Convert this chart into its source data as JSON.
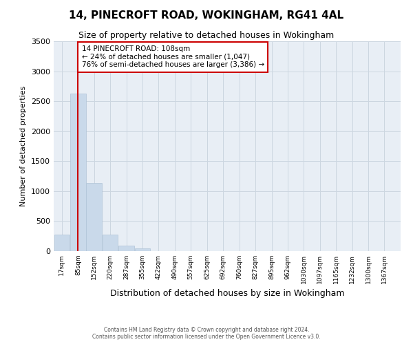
{
  "title": "14, PINECROFT ROAD, WOKINGHAM, RG41 4AL",
  "subtitle": "Size of property relative to detached houses in Wokingham",
  "xlabel": "Distribution of detached houses by size in Wokingham",
  "ylabel": "Number of detached properties",
  "bar_color": "#c9d9ea",
  "bar_edge_color": "#b0c4d8",
  "grid_color": "#ccd6e0",
  "bg_color": "#e8eef5",
  "property_line_color": "#cc0000",
  "property_value": 108,
  "property_label": "14 PINECROFT ROAD: 108sqm",
  "annotation_line1": "← 24% of detached houses are smaller (1,047)",
  "annotation_line2": "76% of semi-detached houses are larger (3,386) →",
  "annotation_box_edge_color": "#cc0000",
  "categories": [
    "17sqm",
    "85sqm",
    "152sqm",
    "220sqm",
    "287sqm",
    "355sqm",
    "422sqm",
    "490sqm",
    "557sqm",
    "625sqm",
    "692sqm",
    "760sqm",
    "827sqm",
    "895sqm",
    "962sqm",
    "1030sqm",
    "1097sqm",
    "1165sqm",
    "1232sqm",
    "1300sqm",
    "1367sqm"
  ],
  "bar_heights": [
    270,
    2630,
    1140,
    270,
    90,
    45,
    5,
    0,
    0,
    0,
    0,
    0,
    0,
    0,
    0,
    0,
    0,
    0,
    0,
    0,
    0
  ],
  "bin_edges": [
    17,
    85,
    152,
    220,
    287,
    355,
    422,
    490,
    557,
    625,
    692,
    760,
    827,
    895,
    962,
    1030,
    1097,
    1165,
    1232,
    1300,
    1367
  ],
  "ylim": [
    0,
    3500
  ],
  "yticks": [
    0,
    500,
    1000,
    1500,
    2000,
    2500,
    3000,
    3500
  ],
  "footer1": "Contains HM Land Registry data © Crown copyright and database right 2024.",
  "footer2": "Contains public sector information licensed under the Open Government Licence v3.0."
}
